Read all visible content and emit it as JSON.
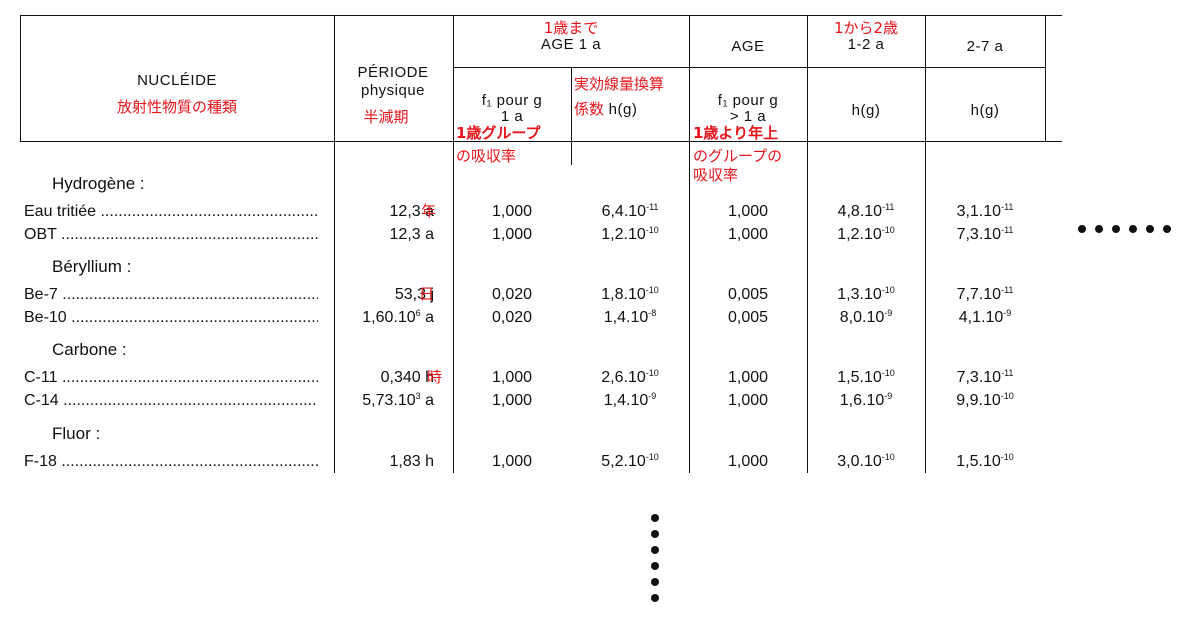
{
  "headers": {
    "nucleide": "NUCLÉIDE",
    "nucleide_ja": "放射性物質の種類",
    "periode_line1": "PÉRIODE",
    "periode_line2": "physique",
    "periode_ja": "半減期",
    "age1_ja": "1歳まで",
    "age1": "AGE  1  a",
    "age": "AGE",
    "age12_ja": "1から2歳",
    "age12": "1-2  a",
    "age27": "2-7  a",
    "f1_line1": "f₁  pour  g",
    "f1_line2": "1  a",
    "f1_ja_line1": "1歳グループ",
    "f1_ja_line2": "の吸収率",
    "h_ja_line1": "実効線量換算",
    "h_ja_line2_prefix": "係数",
    "h_suffix": " h(g)",
    "f1b_line1": "f₁  pour  g",
    "f1b_line2": "> 1  a",
    "f1b_ja_line1": "1歳より年上",
    "f1b_ja_line2": "のグループの",
    "f1b_ja_line3": "吸収率",
    "hg": "h(g)"
  },
  "annotations": {
    "year": "年",
    "day": "日",
    "hour": "時"
  },
  "groups": [
    {
      "name": "Hydrogène :",
      "rows": [
        {
          "nuclide": "Eau tritiée",
          "period": "12,3  a",
          "f1": "1,000",
          "h1": {
            "m": "6,4.10",
            "e": "-11"
          },
          "f1b": "1,000",
          "h12": {
            "m": "4,8.10",
            "e": "-11"
          },
          "h27": {
            "m": "3,1.10",
            "e": "-11"
          }
        },
        {
          "nuclide": "OBT",
          "period": "12,3  a",
          "f1": "1,000",
          "h1": {
            "m": "1,2.10",
            "e": "-10"
          },
          "f1b": "1,000",
          "h12": {
            "m": "1,2.10",
            "e": "-10"
          },
          "h27": {
            "m": "7,3.10",
            "e": "-11"
          }
        }
      ]
    },
    {
      "name": "Béryllium :",
      "rows": [
        {
          "nuclide": "Be-7",
          "period": "53,3  j",
          "f1": "0,020",
          "h1": {
            "m": "1,8.10",
            "e": "-10"
          },
          "f1b": "0,005",
          "h12": {
            "m": "1,3.10",
            "e": "-10"
          },
          "h27": {
            "m": "7,7.10",
            "e": "-11"
          }
        },
        {
          "nuclide": "Be-10",
          "period_m": "1,60.10",
          "period_e": "6",
          "period_u": "  a",
          "f1": "0,020",
          "h1": {
            "m": "1,4.10",
            "e": "-8"
          },
          "f1b": "0,005",
          "h12": {
            "m": "8,0.10",
            "e": "-9"
          },
          "h27": {
            "m": "4,1.10",
            "e": "-9"
          }
        }
      ]
    },
    {
      "name": "Carbone :",
      "rows": [
        {
          "nuclide": "C-11",
          "period": "0,340  h",
          "f1": "1,000",
          "h1": {
            "m": "2,6.10",
            "e": "-10"
          },
          "f1b": "1,000",
          "h12": {
            "m": "1,5.10",
            "e": "-10"
          },
          "h27": {
            "m": "7,3.10",
            "e": "-11"
          }
        },
        {
          "nuclide": "C-14",
          "period_m": "5,73.10",
          "period_e": "3",
          "period_u": "  a",
          "f1": "1,000",
          "h1": {
            "m": "1,4.10",
            "e": "-9"
          },
          "f1b": "1,000",
          "h12": {
            "m": "1,6.10",
            "e": "-9"
          },
          "h27": {
            "m": "9,9.10",
            "e": "-10"
          }
        }
      ]
    },
    {
      "name": "Fluor :",
      "rows": [
        {
          "nuclide": "F-18",
          "period": "1,83  h",
          "f1": "1,000",
          "h1": {
            "m": "5,2.10",
            "e": "-10"
          },
          "f1b": "1,000",
          "h12": {
            "m": "3,0.10",
            "e": "-10"
          },
          "h27": {
            "m": "1,5.10",
            "e": "-10"
          }
        }
      ]
    }
  ],
  "ellipsis": {
    "horizontal_dots": 6,
    "vertical_dots": 6
  }
}
